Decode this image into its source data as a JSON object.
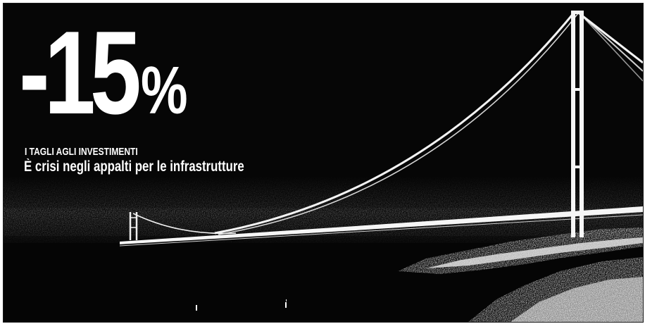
{
  "article": {
    "headline_number": "-15",
    "headline_unit": "%",
    "kicker": "I TAGLI AGLI INVESTIMENTI",
    "subheadline": "È crisi negli appalti per le infrastrutture"
  },
  "photo": {
    "subject": "suspension-bridge",
    "colors": {
      "background": "#060606",
      "text": "#ffffff",
      "structure": "#f4f4f4"
    }
  }
}
